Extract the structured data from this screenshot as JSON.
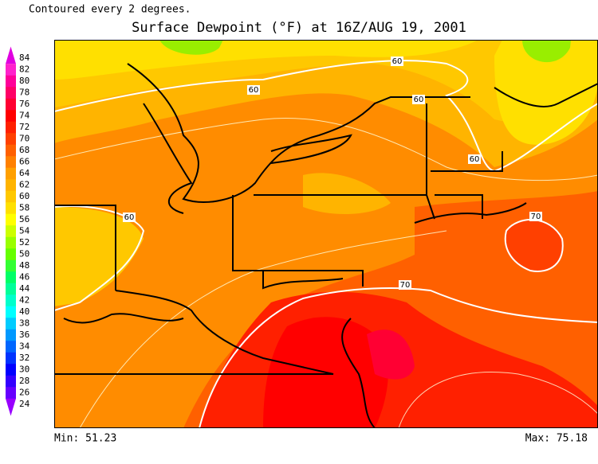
{
  "header": {
    "note": "Contoured every 2 degrees.",
    "title": "Surface Dewpoint (°F) at 16Z/AUG 19, 2001"
  },
  "colorbar": {
    "labels": [
      84,
      82,
      80,
      78,
      76,
      74,
      72,
      70,
      68,
      66,
      64,
      62,
      60,
      58,
      56,
      54,
      52,
      50,
      48,
      46,
      44,
      42,
      40,
      38,
      36,
      34,
      32,
      30,
      28,
      26,
      24
    ],
    "colors": [
      "#e000e0",
      "#ff22cc",
      "#ff0099",
      "#ff0066",
      "#ff0033",
      "#ff0000",
      "#ff2000",
      "#ff4000",
      "#ff6000",
      "#ff8000",
      "#ffa000",
      "#ffb400",
      "#ffc800",
      "#ffe000",
      "#ffff00",
      "#ccff00",
      "#99ff00",
      "#66ff00",
      "#33ff33",
      "#00ff66",
      "#00ff99",
      "#00ffcc",
      "#00ffff",
      "#00ccff",
      "#0099ff",
      "#0066ff",
      "#0033ff",
      "#0000ff",
      "#3300ff",
      "#6600ff",
      "#9900ff"
    ]
  },
  "contour_labels": [
    "60",
    "60",
    "60",
    "60",
    "60",
    "70",
    "70"
  ],
  "footer": {
    "min": "Min: 51.23",
    "max": "Max: 75.18"
  }
}
